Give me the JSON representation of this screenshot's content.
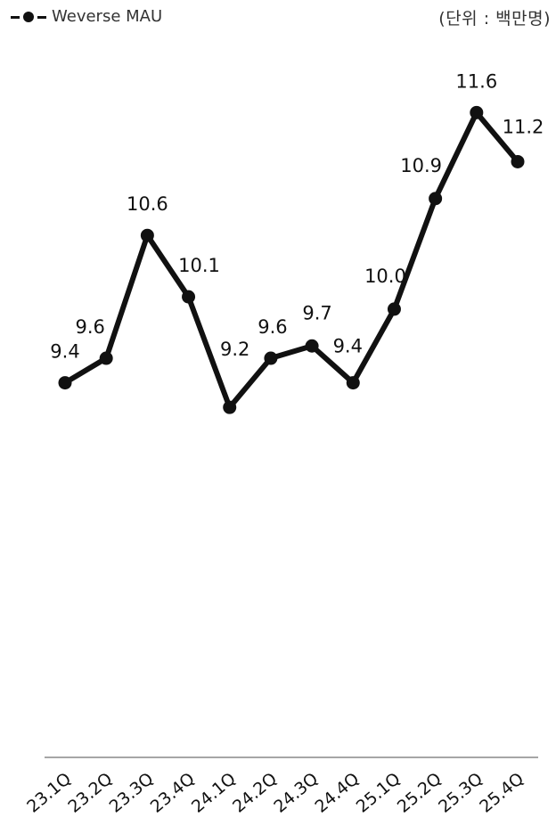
{
  "legend": {
    "label": "Weverse MAU",
    "icon": "line-dot-marker-icon"
  },
  "unit_label": "(단위 : 백만명)",
  "chart_data": {
    "type": "line",
    "title": "",
    "xlabel": "",
    "ylabel": "",
    "categories": [
      "23.1Q",
      "23.2Q",
      "23.3Q",
      "23.4Q",
      "24.1Q",
      "24.2Q",
      "24.3Q",
      "24.4Q",
      "25.1Q",
      "25.2Q",
      "25.3Q",
      "25.4Q"
    ],
    "series": [
      {
        "name": "Weverse MAU",
        "values": [
          9.4,
          9.6,
          10.6,
          10.1,
          9.2,
          9.6,
          9.7,
          9.4,
          10.0,
          10.9,
          11.6,
          11.2
        ],
        "labels": [
          "9.4",
          "9.6",
          "10.6",
          "10.1",
          "9.2",
          "9.6",
          "9.7",
          "9.4",
          "10.0",
          "10.9",
          "11.6",
          "11.2"
        ]
      }
    ],
    "ylim": [
      6.8,
      11.9
    ],
    "grid": false,
    "legend_position": "top-left",
    "line_color": "#111111",
    "axis_color": "#888888"
  }
}
